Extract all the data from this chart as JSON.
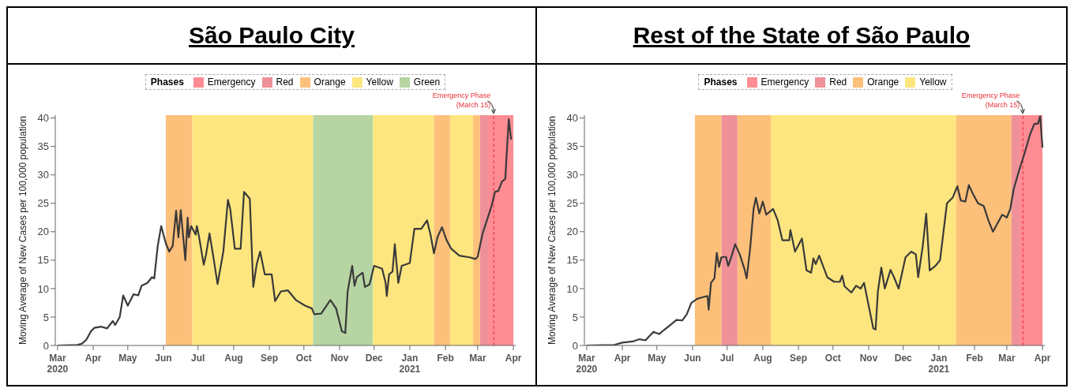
{
  "chart_data": [
    {
      "type": "line",
      "title": "São Paulo City",
      "ylabel": "Moving Average of New Cases per 100,000 population",
      "legend_title": "Phases",
      "legend": "top",
      "x": [
        "2020-03-01",
        "2020-03-18",
        "2020-03-22",
        "2020-03-26",
        "2020-03-30",
        "2020-04-02",
        "2020-04-08",
        "2020-04-13",
        "2020-04-18",
        "2020-04-20",
        "2020-04-24",
        "2020-04-27",
        "2020-05-01",
        "2020-05-06",
        "2020-05-10",
        "2020-05-13",
        "2020-05-18",
        "2020-05-22",
        "2020-05-24",
        "2020-05-27",
        "2020-05-30",
        "2020-06-03",
        "2020-06-06",
        "2020-06-09",
        "2020-06-12",
        "2020-06-14",
        "2020-06-16",
        "2020-06-20",
        "2020-06-22",
        "2020-06-23",
        "2020-06-25",
        "2020-06-29",
        "2020-06-30",
        "2020-07-02",
        "2020-07-06",
        "2020-07-08",
        "2020-07-11",
        "2020-07-14",
        "2020-07-18",
        "2020-07-23",
        "2020-07-27",
        "2020-07-29",
        "2020-08-02",
        "2020-08-07",
        "2020-08-10",
        "2020-08-15",
        "2020-08-18",
        "2020-08-21",
        "2020-08-24",
        "2020-08-28",
        "2020-09-03",
        "2020-09-06",
        "2020-09-11",
        "2020-09-17",
        "2020-09-24",
        "2020-10-02",
        "2020-10-08",
        "2020-10-10",
        "2020-10-16",
        "2020-10-24",
        "2020-10-29",
        "2020-11-03",
        "2020-11-06",
        "2020-11-08",
        "2020-11-12",
        "2020-11-14",
        "2020-11-16",
        "2020-11-21",
        "2020-11-23",
        "2020-11-27",
        "2020-12-01",
        "2020-12-08",
        "2020-12-11",
        "2020-12-12",
        "2020-12-14",
        "2020-12-17",
        "2020-12-19",
        "2020-12-22",
        "2020-12-25",
        "2021-01-01",
        "2021-01-05",
        "2021-01-11",
        "2021-01-16",
        "2021-01-19",
        "2021-01-22",
        "2021-01-25",
        "2021-01-29",
        "2021-02-02",
        "2021-02-06",
        "2021-02-13",
        "2021-02-22",
        "2021-02-27",
        "2021-03-01",
        "2021-03-05",
        "2021-03-09",
        "2021-03-13",
        "2021-03-16",
        "2021-03-19",
        "2021-03-22",
        "2021-03-25",
        "2021-03-26",
        "2021-03-28",
        "2021-03-30"
      ],
      "series": [
        {
          "color": "#3a3a3a",
          "values": [
            0,
            0.1,
            0.3,
            1.0,
            2.5,
            3.1,
            3.3,
            3.0,
            4.3,
            3.6,
            5.0,
            8.8,
            7.0,
            9.0,
            8.8,
            10.5,
            11.0,
            12.0,
            11.8,
            17.5,
            21.0,
            18.0,
            16.5,
            17.5,
            23.7,
            19,
            23.8,
            15.0,
            22.5,
            19,
            21.0,
            19.5,
            21.0,
            19,
            14.2,
            16,
            19.7,
            16,
            10.8,
            16.5,
            25.6,
            24,
            17,
            17,
            27,
            25.8,
            10.3,
            14.3,
            16.5,
            12.5,
            12.5,
            7.8,
            9.5,
            9.7,
            8.0,
            7.0,
            6.5,
            5.5,
            5.6,
            8.0,
            6.5,
            2.5,
            2.2,
            9.5,
            14.0,
            10.5,
            12.0,
            12.8,
            10.3,
            10.7,
            14.0,
            13.5,
            11.0,
            8.7,
            12.5,
            13,
            17.8,
            11.0,
            14.0,
            14.5,
            20.5,
            20.5,
            22.0,
            19.5,
            16.2,
            19,
            20.8,
            18.5,
            17.0,
            15.8,
            15.5,
            15.2,
            15.6,
            19.5,
            22.0,
            24.5,
            27.0,
            27.2,
            28.8,
            29.3,
            33,
            39.8,
            36.2
          ]
        }
      ],
      "xlim": [
        "2020-02-28",
        "2021-04-03"
      ],
      "xticks": [
        {
          "value": "2020-03-01",
          "label": "Mar 2020"
        },
        {
          "value": "2020-04-01",
          "label": "Apr"
        },
        {
          "value": "2020-05-01",
          "label": "May"
        },
        {
          "value": "2020-06-01",
          "label": "Jun"
        },
        {
          "value": "2020-07-01",
          "label": "Jul"
        },
        {
          "value": "2020-08-01",
          "label": "Aug"
        },
        {
          "value": "2020-09-01",
          "label": "Sep"
        },
        {
          "value": "2020-10-01",
          "label": "Oct"
        },
        {
          "value": "2020-11-01",
          "label": "Nov"
        },
        {
          "value": "2020-12-01",
          "label": "Dec"
        },
        {
          "value": "2021-01-01",
          "label": "Jan 2021"
        },
        {
          "value": "2021-02-01",
          "label": "Feb"
        },
        {
          "value": "2021-03-01",
          "label": "Mar"
        },
        {
          "value": "2021-04-01",
          "label": "Apr"
        }
      ],
      "ylim": [
        0,
        40.5
      ],
      "yticks": [
        0,
        5,
        10,
        15,
        20,
        25,
        30,
        35,
        40
      ],
      "bands": [
        {
          "axis": "x",
          "from": "2021-03-10",
          "to": "2021-04-01",
          "label": "Emergency",
          "color": "#fe8c93"
        },
        {
          "axis": "x",
          "from": "2021-03-03",
          "to": "2021-03-10",
          "label": "Red",
          "color": "#ee9199"
        },
        {
          "axis": "x",
          "from": "2020-06-03",
          "to": "2020-06-26",
          "label": "Orange",
          "color": "#fdc07a"
        },
        {
          "axis": "x",
          "from": "2020-06-26",
          "to": "2020-10-09",
          "label": "Yellow",
          "color": "#fde67f"
        },
        {
          "axis": "x",
          "from": "2020-10-09",
          "to": "2020-11-30",
          "label": "Green",
          "color": "#b6d5a3"
        },
        {
          "axis": "x",
          "from": "2020-11-30",
          "to": "2021-01-22",
          "color": "#fde67f"
        },
        {
          "axis": "x",
          "from": "2021-01-22",
          "to": "2021-02-05",
          "color": "#fdc07a"
        },
        {
          "axis": "x",
          "from": "2021-02-05",
          "to": "2021-02-25",
          "color": "#fde67f"
        },
        {
          "axis": "x",
          "from": "2021-02-25",
          "to": "2021-03-03",
          "color": "#fdc07a"
        }
      ],
      "ref_lines": [
        {
          "axis": "x",
          "value": "2021-03-15",
          "label": "Emergency Phase\n(March 15)",
          "color": "#e8303a",
          "line_style": "dashed"
        }
      ]
    },
    {
      "type": "line",
      "title": "Rest of the State of São Paulo",
      "ylabel": "Moving Average of New Cases per 100,000 population",
      "legend_title": "Phases",
      "legend": "top",
      "x": [
        "2020-03-01",
        "2020-03-25",
        "2020-04-01",
        "2020-04-10",
        "2020-04-16",
        "2020-04-21",
        "2020-04-28",
        "2020-05-03",
        "2020-05-07",
        "2020-05-12",
        "2020-05-18",
        "2020-05-23",
        "2020-05-27",
        "2020-05-31",
        "2020-06-05",
        "2020-06-10",
        "2020-06-14",
        "2020-06-15",
        "2020-06-17",
        "2020-06-20",
        "2020-06-22",
        "2020-06-24",
        "2020-06-26",
        "2020-06-30",
        "2020-07-02",
        "2020-07-05",
        "2020-07-08",
        "2020-07-12",
        "2020-07-16",
        "2020-07-18",
        "2020-07-21",
        "2020-07-24",
        "2020-07-26",
        "2020-07-29",
        "2020-08-01",
        "2020-08-04",
        "2020-08-10",
        "2020-08-14",
        "2020-08-18",
        "2020-08-24",
        "2020-08-25",
        "2020-08-29",
        "2020-09-04",
        "2020-09-08",
        "2020-09-12",
        "2020-09-14",
        "2020-09-16",
        "2020-09-19",
        "2020-09-26",
        "2020-10-02",
        "2020-10-07",
        "2020-10-09",
        "2020-10-11",
        "2020-10-17",
        "2020-10-21",
        "2020-10-25",
        "2020-10-28",
        "2020-11-01",
        "2020-11-05",
        "2020-11-07",
        "2020-11-09",
        "2020-11-12",
        "2020-11-15",
        "2020-11-20",
        "2020-11-23",
        "2020-11-27",
        "2020-12-03",
        "2020-12-08",
        "2020-12-12",
        "2020-12-14",
        "2020-12-18",
        "2020-12-21",
        "2020-12-24",
        "2020-12-29",
        "2021-01-02",
        "2021-01-08",
        "2021-01-13",
        "2021-01-17",
        "2021-01-20",
        "2021-01-24",
        "2021-01-27",
        "2021-01-31",
        "2021-02-04",
        "2021-02-09",
        "2021-02-13",
        "2021-02-17",
        "2021-02-21",
        "2021-02-25",
        "2021-03-01",
        "2021-03-04",
        "2021-03-07",
        "2021-03-12",
        "2021-03-16",
        "2021-03-21",
        "2021-03-25",
        "2021-03-28",
        "2021-03-30",
        "2021-04-01"
      ],
      "series": [
        {
          "color": "#3a3a3a",
          "values": [
            0,
            0.1,
            0.5,
            0.7,
            1.1,
            0.9,
            2.4,
            2.0,
            2.7,
            3.5,
            4.5,
            4.4,
            5.5,
            7.5,
            8.2,
            8.5,
            8.7,
            6.3,
            11.0,
            11.8,
            16.3,
            13.8,
            15.5,
            15.6,
            14.0,
            15.8,
            17.8,
            16.0,
            13.5,
            11.8,
            17.0,
            24.0,
            26.0,
            23.2,
            25.3,
            23.0,
            24.0,
            22.0,
            18.5,
            18.5,
            20.3,
            16.5,
            18.8,
            13.2,
            12.8,
            15.3,
            14.3,
            15.8,
            12.0,
            11.2,
            11.2,
            12.3,
            10.4,
            9.3,
            10.5,
            10.0,
            11.0,
            7.0,
            3.0,
            2.8,
            9.5,
            13.7,
            10.0,
            13.3,
            12.0,
            10.0,
            15.5,
            16.5,
            16.0,
            12.0,
            17.5,
            23.2,
            13.2,
            14.0,
            15.0,
            25.0,
            26.0,
            28.0,
            25.5,
            25.3,
            28.2,
            26.5,
            25.0,
            24.5,
            22.0,
            20.0,
            21.5,
            23.0,
            22.5,
            24.0,
            27.5,
            31.0,
            33.5,
            37.0,
            39.0,
            39.0,
            40.3,
            34.8
          ]
        }
      ],
      "xlim": [
        "2020-02-28",
        "2021-04-03"
      ],
      "xticks": [
        {
          "value": "2020-03-01",
          "label": "Mar 2020"
        },
        {
          "value": "2020-04-01",
          "label": "Apr"
        },
        {
          "value": "2020-05-01",
          "label": "May"
        },
        {
          "value": "2020-06-01",
          "label": "Jun"
        },
        {
          "value": "2020-07-01",
          "label": "Jul"
        },
        {
          "value": "2020-08-01",
          "label": "Aug"
        },
        {
          "value": "2020-09-01",
          "label": "Sep"
        },
        {
          "value": "2020-10-01",
          "label": "Oct"
        },
        {
          "value": "2020-11-01",
          "label": "Nov"
        },
        {
          "value": "2020-12-01",
          "label": "Dec"
        },
        {
          "value": "2021-01-01",
          "label": "Jan 2021"
        },
        {
          "value": "2021-02-01",
          "label": "Feb"
        },
        {
          "value": "2021-03-01",
          "label": "Mar"
        },
        {
          "value": "2021-04-01",
          "label": "Apr"
        }
      ],
      "ylim": [
        0,
        40.5
      ],
      "yticks": [
        0,
        5,
        10,
        15,
        20,
        25,
        30,
        35,
        40
      ],
      "bands": [
        {
          "axis": "x",
          "from": "2021-03-12",
          "to": "2021-04-01",
          "label": "Emergency",
          "color": "#fe8c93"
        },
        {
          "axis": "x",
          "from": "2020-06-26",
          "to": "2020-07-10",
          "label": "Red",
          "color": "#ee9199"
        },
        {
          "axis": "x",
          "from": "2020-06-03",
          "to": "2020-06-26",
          "label": "Orange",
          "color": "#fdc07a"
        },
        {
          "axis": "x",
          "from": "2020-08-08",
          "to": "2021-01-16",
          "label": "Yellow",
          "color": "#fde67f"
        },
        {
          "axis": "x",
          "from": "2020-07-10",
          "to": "2020-08-08",
          "color": "#fdc07a"
        },
        {
          "axis": "x",
          "from": "2021-01-16",
          "to": "2021-03-05",
          "color": "#fdc07a"
        },
        {
          "axis": "x",
          "from": "2021-03-05",
          "to": "2021-03-12",
          "color": "#ee9199"
        }
      ],
      "ref_lines": [
        {
          "axis": "x",
          "value": "2021-03-15",
          "label": "Emergency Phase\n(March 15)",
          "color": "#e8303a",
          "line_style": "dashed"
        }
      ]
    }
  ]
}
